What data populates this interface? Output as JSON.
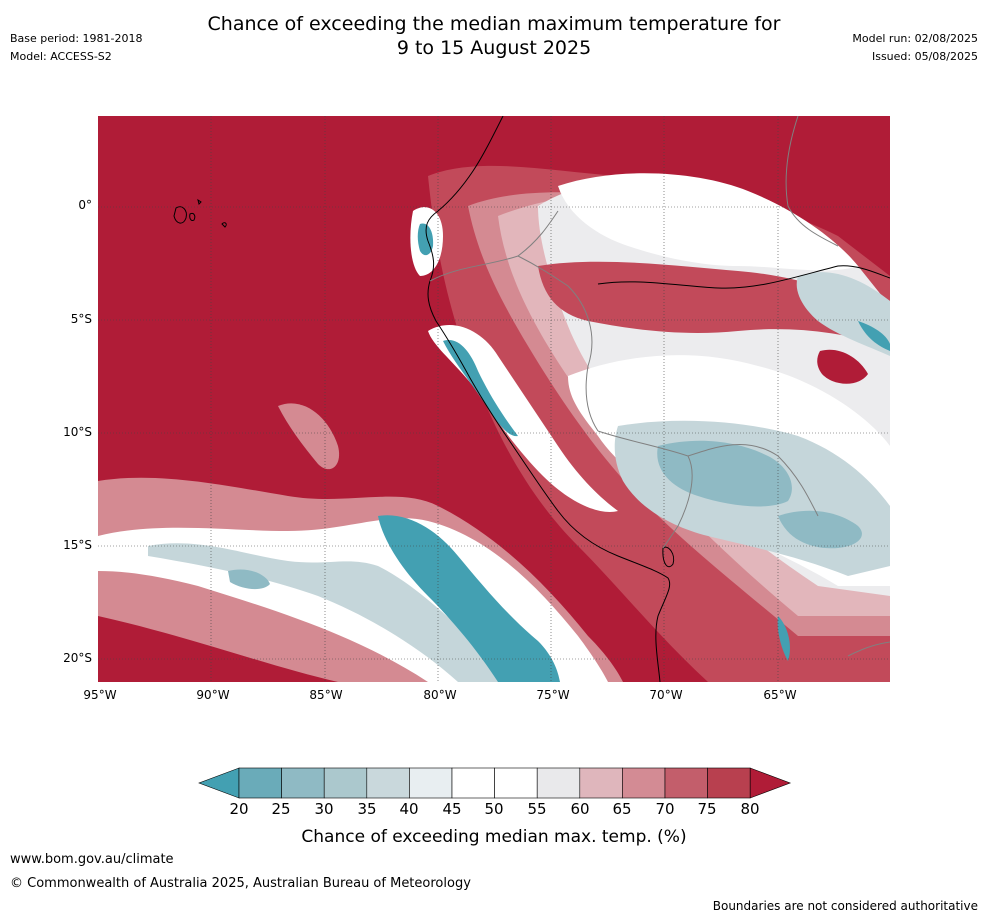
{
  "title_line1": "Chance of exceeding the median maximum temperature for",
  "title_line2": "9 to 15 August 2025",
  "meta_left": {
    "base_period": "Base period: 1981-2018",
    "model": "Model: ACCESS-S2"
  },
  "meta_right": {
    "model_run": "Model run: 02/08/2025",
    "issued": "Issued: 05/08/2025"
  },
  "map": {
    "lat_ticks": [
      "0°",
      "5°S",
      "10°S",
      "15°S",
      "20°S"
    ],
    "lon_ticks": [
      "95°W",
      "90°W",
      "85°W",
      "80°W",
      "75°W",
      "70°W",
      "65°W"
    ],
    "colors": {
      "ocean_warm": "#b01c37",
      "high": "#c24a5a",
      "mid_high": "#d48a92",
      "light_pink": "#e2b6bb",
      "near_white": "#ececee",
      "white": "#ffffff",
      "light_blue": "#c5d6da",
      "mid_blue": "#8fbac4",
      "teal": "#43a0b2",
      "coast": "#000000",
      "border": "#808080"
    }
  },
  "colorbar": {
    "labels": [
      "20",
      "25",
      "30",
      "35",
      "40",
      "45",
      "50",
      "55",
      "60",
      "65",
      "70",
      "75",
      "80"
    ],
    "colors": [
      "#43a0b2",
      "#6aabb9",
      "#8fbac4",
      "#abc8cd",
      "#c9d8dc",
      "#e8eef1",
      "#ffffff",
      "#ffffff",
      "#e9e9eb",
      "#dfb6bc",
      "#d38b94",
      "#c35e6b",
      "#b8404f",
      "#b01c37"
    ],
    "title": "Chance of exceeding median max. temp. (%)"
  },
  "footer": {
    "url": "www.bom.gov.au/climate",
    "copyright": "© Commonwealth of Australia 2025, Australian Bureau of Meteorology",
    "disclaimer": "Boundaries are not considered authoritative"
  }
}
